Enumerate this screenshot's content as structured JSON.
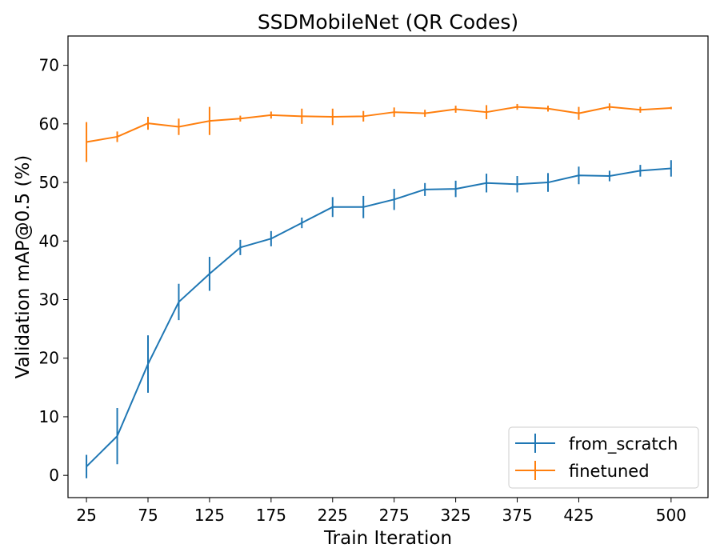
{
  "chart_data": {
    "type": "line",
    "title": "SSDMobileNet (QR Codes)",
    "xlabel": "Train Iteration",
    "ylabel": "Validation mAP@0.5 (%)",
    "xlim": [
      10,
      530
    ],
    "ylim": [
      -3.8,
      75
    ],
    "xticks": [
      25,
      75,
      125,
      175,
      225,
      275,
      325,
      375,
      425,
      500
    ],
    "yticks": [
      0,
      10,
      20,
      30,
      40,
      50,
      60,
      70
    ],
    "grid": false,
    "legend_position": "lower-right",
    "x": [
      25,
      50,
      75,
      100,
      125,
      150,
      175,
      200,
      225,
      250,
      275,
      300,
      325,
      350,
      375,
      400,
      425,
      450,
      475,
      500
    ],
    "series": [
      {
        "name": "from_scratch",
        "color": "#1f77b4",
        "values": [
          1.5,
          6.7,
          19.0,
          29.6,
          34.4,
          38.9,
          40.4,
          43.1,
          45.8,
          45.8,
          47.1,
          48.8,
          48.9,
          49.9,
          49.7,
          50.0,
          51.2,
          51.1,
          52.0,
          52.4
        ],
        "errors": [
          2.0,
          4.8,
          4.9,
          3.1,
          2.9,
          1.3,
          1.3,
          0.9,
          1.7,
          1.9,
          1.8,
          1.1,
          1.4,
          1.6,
          1.4,
          1.6,
          1.5,
          0.9,
          1.0,
          1.4
        ]
      },
      {
        "name": "finetuned",
        "color": "#ff7f0e",
        "values": [
          56.9,
          57.8,
          60.1,
          59.5,
          60.5,
          60.9,
          61.5,
          61.3,
          61.2,
          61.3,
          62.0,
          61.8,
          62.5,
          62.0,
          62.9,
          62.6,
          61.8,
          62.9,
          62.4,
          62.7
        ],
        "errors": [
          3.4,
          0.9,
          1.1,
          1.4,
          2.4,
          0.5,
          0.6,
          1.3,
          1.4,
          0.9,
          0.8,
          0.6,
          0.6,
          1.2,
          0.5,
          0.5,
          1.1,
          0.6,
          0.5,
          0.2
        ]
      }
    ]
  }
}
